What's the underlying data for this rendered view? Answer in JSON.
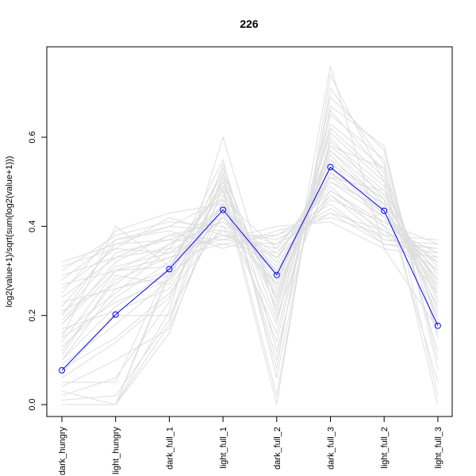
{
  "chart_data": {
    "type": "line",
    "title": "226",
    "xlabel": "",
    "ylabel": "log2(value+1)/sqrt(sum(log2(value+1)))",
    "categories": [
      "dark_hungry",
      "light_hungry",
      "dark_full_1",
      "light_full_1",
      "dark_full_2",
      "dark_full_3",
      "light_full_2",
      "light_full_3"
    ],
    "yticks": [
      0.0,
      0.2,
      0.4,
      0.6
    ],
    "ytick_labels": [
      "0.0",
      "0.2",
      "0.4",
      "0.6"
    ],
    "ylim": [
      -0.03,
      0.8
    ],
    "grid": false,
    "legend": "none",
    "highlight_series": {
      "values": [
        0.077,
        0.202,
        0.304,
        0.437,
        0.291,
        0.533,
        0.435,
        0.177
      ],
      "color": "#0000ff",
      "marker": "open-circle"
    },
    "background_series_color": "#dedede",
    "background_series": [
      [
        0.0,
        0.0,
        0.29,
        0.48,
        0.0,
        0.74,
        0.5,
        0.0
      ],
      [
        0.0,
        0.0,
        0.3,
        0.55,
        0.12,
        0.6,
        0.46,
        0.05
      ],
      [
        0.0,
        0.0,
        0.21,
        0.6,
        0.2,
        0.52,
        0.45,
        0.22
      ],
      [
        0.03,
        0.0,
        0.18,
        0.52,
        0.08,
        0.76,
        0.35,
        0.17
      ],
      [
        0.05,
        0.05,
        0.31,
        0.45,
        0.18,
        0.66,
        0.52,
        0.12
      ],
      [
        0.08,
        0.15,
        0.25,
        0.4,
        0.27,
        0.58,
        0.48,
        0.2
      ],
      [
        0.1,
        0.22,
        0.3,
        0.42,
        0.32,
        0.55,
        0.4,
        0.25
      ],
      [
        0.12,
        0.28,
        0.33,
        0.38,
        0.35,
        0.5,
        0.42,
        0.28
      ],
      [
        0.14,
        0.3,
        0.36,
        0.44,
        0.3,
        0.47,
        0.39,
        0.3
      ],
      [
        0.16,
        0.25,
        0.35,
        0.48,
        0.25,
        0.56,
        0.44,
        0.26
      ],
      [
        0.18,
        0.32,
        0.38,
        0.41,
        0.34,
        0.49,
        0.38,
        0.32
      ],
      [
        0.2,
        0.34,
        0.37,
        0.36,
        0.38,
        0.45,
        0.36,
        0.34
      ],
      [
        0.22,
        0.36,
        0.4,
        0.39,
        0.37,
        0.44,
        0.37,
        0.35
      ],
      [
        0.24,
        0.33,
        0.35,
        0.37,
        0.36,
        0.43,
        0.39,
        0.33
      ],
      [
        0.26,
        0.35,
        0.34,
        0.38,
        0.33,
        0.46,
        0.41,
        0.36
      ],
      [
        0.28,
        0.37,
        0.39,
        0.35,
        0.39,
        0.42,
        0.38,
        0.37
      ],
      [
        0.3,
        0.38,
        0.41,
        0.4,
        0.36,
        0.48,
        0.4,
        0.34
      ],
      [
        0.32,
        0.36,
        0.37,
        0.42,
        0.31,
        0.51,
        0.43,
        0.31
      ],
      [
        0.25,
        0.39,
        0.43,
        0.45,
        0.28,
        0.53,
        0.45,
        0.29
      ],
      [
        0.15,
        0.4,
        0.31,
        0.5,
        0.24,
        0.57,
        0.47,
        0.24
      ],
      [
        0.11,
        0.29,
        0.27,
        0.47,
        0.22,
        0.61,
        0.5,
        0.21
      ],
      [
        0.07,
        0.2,
        0.2,
        0.43,
        0.16,
        0.63,
        0.53,
        0.18
      ],
      [
        0.04,
        0.1,
        0.17,
        0.46,
        0.14,
        0.65,
        0.55,
        0.15
      ],
      [
        0.02,
        0.06,
        0.23,
        0.51,
        0.1,
        0.69,
        0.57,
        0.1
      ],
      [
        0.09,
        0.18,
        0.28,
        0.53,
        0.21,
        0.59,
        0.49,
        0.23
      ],
      [
        0.13,
        0.24,
        0.32,
        0.49,
        0.26,
        0.54,
        0.46,
        0.27
      ],
      [
        0.19,
        0.31,
        0.34,
        0.43,
        0.29,
        0.52,
        0.42,
        0.3
      ],
      [
        0.21,
        0.27,
        0.36,
        0.41,
        0.33,
        0.5,
        0.44,
        0.28
      ],
      [
        0.23,
        0.26,
        0.29,
        0.39,
        0.3,
        0.48,
        0.41,
        0.32
      ],
      [
        0.17,
        0.21,
        0.26,
        0.44,
        0.27,
        0.55,
        0.46,
        0.25
      ],
      [
        0.06,
        0.14,
        0.24,
        0.5,
        0.19,
        0.62,
        0.51,
        0.19
      ],
      [
        0.27,
        0.3,
        0.33,
        0.36,
        0.34,
        0.47,
        0.37,
        0.36
      ],
      [
        0.29,
        0.33,
        0.38,
        0.37,
        0.4,
        0.41,
        0.35,
        0.33
      ],
      [
        0.31,
        0.35,
        0.42,
        0.38,
        0.38,
        0.43,
        0.36,
        0.35
      ],
      [
        0.2,
        0.37,
        0.4,
        0.46,
        0.35,
        0.51,
        0.48,
        0.26
      ],
      [
        0.1,
        0.26,
        0.3,
        0.52,
        0.23,
        0.58,
        0.53,
        0.16
      ],
      [
        0.01,
        0.02,
        0.19,
        0.54,
        0.06,
        0.67,
        0.58,
        0.08
      ],
      [
        0.0,
        0.0,
        0.16,
        0.49,
        0.02,
        0.71,
        0.54,
        0.02
      ],
      [
        0.15,
        0.23,
        0.28,
        0.45,
        0.24,
        0.57,
        0.45,
        0.22
      ],
      [
        0.18,
        0.3,
        0.31,
        0.42,
        0.3,
        0.53,
        0.43,
        0.28
      ]
    ]
  }
}
